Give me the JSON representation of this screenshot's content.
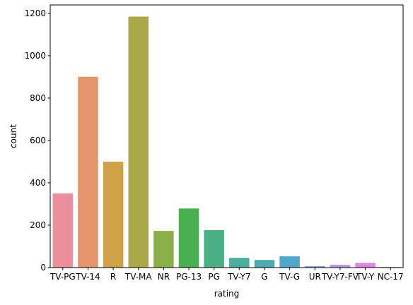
{
  "chart_data": {
    "type": "bar",
    "xlabel": "rating",
    "ylabel": "count",
    "ylim": [
      0,
      1240
    ],
    "yticks": [
      0,
      200,
      400,
      600,
      800,
      1000,
      1200
    ],
    "categories": [
      "TV-PG",
      "TV-14",
      "R",
      "TV-MA",
      "NR",
      "PG-13",
      "PG",
      "TV-Y7",
      "G",
      "TV-G",
      "UR",
      "TV-Y7-FV",
      "TV-Y",
      "NC-17"
    ],
    "values": [
      350,
      901,
      500,
      1185,
      173,
      279,
      177,
      46,
      36,
      53,
      7,
      13,
      22,
      3
    ],
    "colors": [
      "#ea8f9b",
      "#e6956a",
      "#cfa247",
      "#aaa848",
      "#8bb049",
      "#48b04e",
      "#4bb185",
      "#4cae9e",
      "#4daab1",
      "#4fa8c8",
      "#8aa0e8",
      "#b793e9",
      "#e382e6",
      "#e889c2"
    ],
    "grid": false,
    "legend": "none"
  }
}
